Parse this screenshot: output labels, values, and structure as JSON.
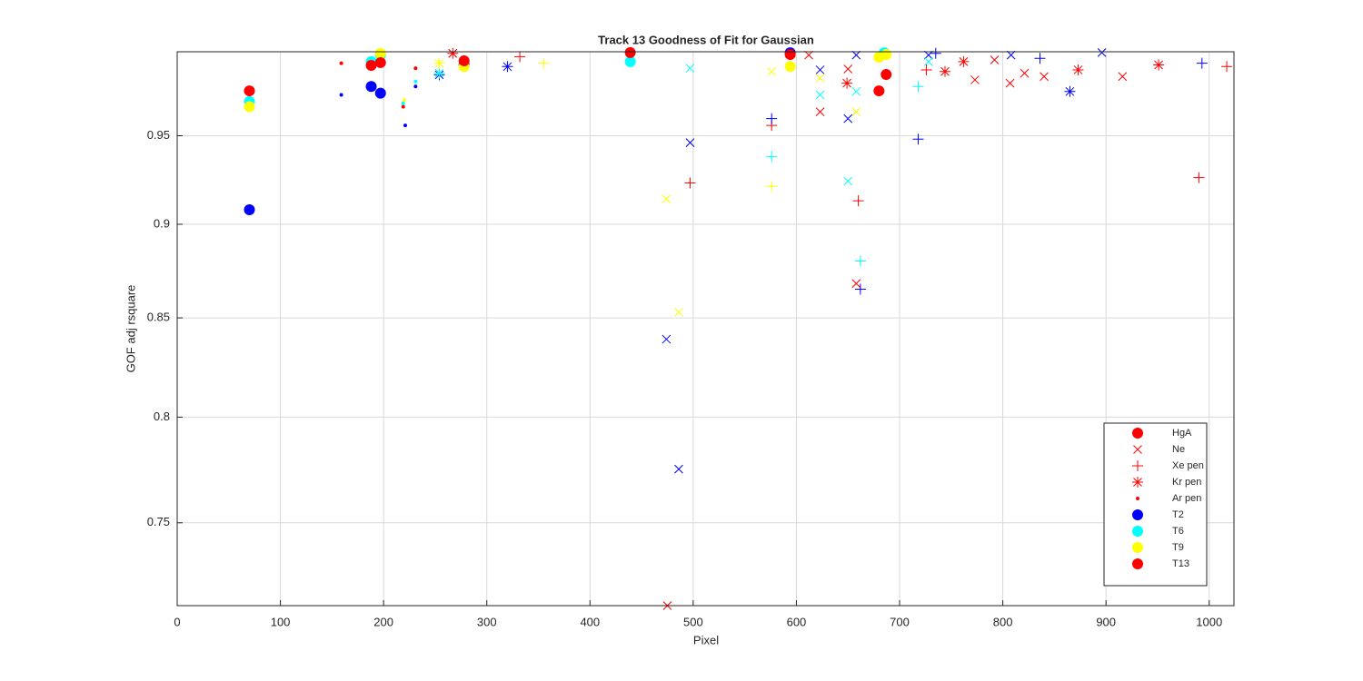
{
  "chart_data": {
    "type": "scatter",
    "title": "Track 13  Goodness of Fit for Gaussian",
    "x_label": "Pixel",
    "y_label": "GOF adj rsquare",
    "xlim": [
      0,
      1024
    ],
    "ylim": [
      0.713,
      1
    ],
    "ylog": true,
    "grid": true,
    "xticks": [
      0,
      100,
      200,
      300,
      400,
      500,
      600,
      700,
      800,
      900,
      1000
    ],
    "yticks": [
      0.75,
      0.8,
      0.85,
      0.9,
      0.95
    ],
    "legend_position": "lower right",
    "legend": [
      {
        "label": "HgA",
        "marker": "o",
        "color": "#ff0000"
      },
      {
        "label": "Ne",
        "marker": "x",
        "color": "#ff0000"
      },
      {
        "label": "Xe pen",
        "marker": "+",
        "color": "#ff0000"
      },
      {
        "label": "Kr pen",
        "marker": "*",
        "color": "#ff0000"
      },
      {
        "label": "Ar pen",
        "marker": ".",
        "color": "#ff0000"
      },
      {
        "label": "T2",
        "marker": "o",
        "color": "#0000ff"
      },
      {
        "label": "T6",
        "marker": "o",
        "color": "#00ffff"
      },
      {
        "label": "T9",
        "marker": "o",
        "color": "#ffff00"
      },
      {
        "label": "T13",
        "marker": "o",
        "color": "#ff0000"
      }
    ],
    "series": [
      {
        "marker": "o",
        "color": "#0000ff",
        "x": [
          70,
          188,
          197,
          278,
          594
        ],
        "values": [
          0.908,
          0.979,
          0.975,
          0.992,
          0.9994
        ]
      },
      {
        "marker": "o",
        "color": "#00ffff",
        "x": [
          70,
          188,
          197,
          439,
          685
        ],
        "values": [
          0.97,
          0.994,
          0.998,
          0.994,
          0.9994
        ]
      },
      {
        "marker": "o",
        "color": "#ffff00",
        "x": [
          70,
          197,
          278,
          594,
          680,
          687
        ],
        "values": [
          0.967,
          0.999,
          0.991,
          0.991,
          0.9967,
          0.9983
        ]
      },
      {
        "marker": "o",
        "color": "#ff0000",
        "x": [
          70,
          188,
          197,
          278,
          439,
          594,
          680,
          687
        ],
        "values": [
          0.9764,
          0.9917,
          0.9934,
          0.9945,
          0.9995,
          0.9983,
          0.9764,
          0.9862
        ]
      },
      {
        "marker": "x",
        "color": "#ff0000",
        "x": [
          267,
          475,
          623,
          650,
          658,
          773,
          807,
          821,
          840,
          916,
          792,
          612
        ],
        "values": [
          0.999,
          0.713,
          0.964,
          0.9895,
          0.868,
          0.983,
          0.981,
          0.987,
          0.985,
          0.985,
          0.995,
          0.998
        ]
      },
      {
        "marker": "x",
        "color": "#0000ff",
        "x": [
          474,
          486,
          497,
          623,
          650,
          658,
          728,
          808,
          896
        ],
        "values": [
          0.839,
          0.775,
          0.946,
          0.989,
          0.96,
          0.998,
          0.998,
          0.998,
          0.9995
        ]
      },
      {
        "marker": "x",
        "color": "#00ffff",
        "x": [
          497,
          623,
          650,
          658,
          728
        ],
        "values": [
          0.99,
          0.974,
          0.924,
          0.976,
          0.994
        ]
      },
      {
        "marker": "x",
        "color": "#ffff00",
        "x": [
          474,
          486,
          576,
          623,
          658
        ],
        "values": [
          0.914,
          0.853,
          0.988,
          0.984,
          0.964
        ]
      },
      {
        "marker": "+",
        "color": "#ff0000",
        "x": [
          497,
          576,
          660,
          726,
          990,
          1017,
          332
        ],
        "values": [
          0.923,
          0.956,
          0.913,
          0.989,
          0.926,
          0.991,
          0.997
        ]
      },
      {
        "marker": "+",
        "color": "#0000ff",
        "x": [
          576,
          662,
          718,
          993,
          836,
          735
        ],
        "values": [
          0.96,
          0.865,
          0.948,
          0.993,
          0.996,
          0.999
        ]
      },
      {
        "marker": "+",
        "color": "#00ffff",
        "x": [
          576,
          662,
          718
        ],
        "values": [
          0.938,
          0.88,
          0.979
        ]
      },
      {
        "marker": "+",
        "color": "#ffff00",
        "x": [
          576,
          355
        ],
        "values": [
          0.921,
          0.993
        ]
      },
      {
        "marker": "*",
        "color": "#ff0000",
        "x": [
          267,
          649,
          744,
          762,
          873,
          951
        ],
        "values": [
          0.999,
          0.981,
          0.988,
          0.994,
          0.989,
          0.992
        ]
      },
      {
        "marker": "*",
        "color": "#0000ff",
        "x": [
          254,
          320,
          865
        ],
        "values": [
          0.986,
          0.991,
          0.976
        ]
      },
      {
        "marker": "*",
        "color": "#00ffff",
        "x": [
          254
        ],
        "values": [
          0.987
        ]
      },
      {
        "marker": "*",
        "color": "#ffff00",
        "x": [
          254
        ],
        "values": [
          0.993
        ]
      },
      {
        "marker": ".",
        "color": "#ff0000",
        "x": [
          159,
          231,
          219
        ],
        "values": [
          0.993,
          0.99,
          0.967
        ]
      },
      {
        "marker": ".",
        "color": "#0000ff",
        "x": [
          159,
          221,
          231
        ],
        "values": [
          0.974,
          0.956,
          0.979
        ]
      },
      {
        "marker": ".",
        "color": "#00ffff",
        "x": [
          231,
          219
        ],
        "values": [
          0.982,
          0.969
        ]
      },
      {
        "marker": ".",
        "color": "#ffff00",
        "x": [
          220
        ],
        "values": [
          0.971
        ]
      }
    ]
  }
}
